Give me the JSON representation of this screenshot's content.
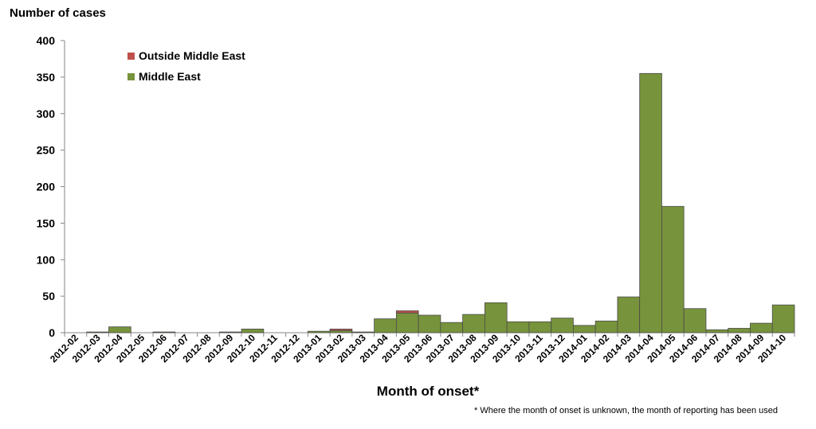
{
  "chart_data": {
    "type": "bar",
    "stacked": true,
    "ylabel": "Number of cases",
    "xlabel": "Month of onset*",
    "footnote": "* Where the month of onset is unknown, the month of reporting has been used",
    "ylim": [
      0,
      400
    ],
    "yticks": [
      0,
      50,
      100,
      150,
      200,
      250,
      300,
      350,
      400
    ],
    "grid": false,
    "legend_position": "top-left",
    "categories": [
      "2012-02",
      "2012-03",
      "2012-04",
      "2012-05",
      "2012-06",
      "2012-07",
      "2012-08",
      "2012-09",
      "2012-10",
      "2012-11",
      "2012-12",
      "2013-01",
      "2013-02",
      "2013-03",
      "2013-04",
      "2013-05",
      "2013-06",
      "2013-07",
      "2013-08",
      "2013-09",
      "2013-10",
      "2013-11",
      "2013-12",
      "2014-01",
      "2014-02",
      "2014-03",
      "2014-04",
      "2014-05",
      "2014-06",
      "2014-07",
      "2014-08",
      "2014-09",
      "2014-10"
    ],
    "series": [
      {
        "name": "Middle East",
        "color": "#77933C",
        "values": [
          0,
          1,
          8,
          0,
          1,
          0,
          0,
          1,
          5,
          0,
          0,
          2,
          3,
          1,
          19,
          27,
          24,
          14,
          25,
          41,
          15,
          15,
          20,
          10,
          16,
          49,
          355,
          173,
          33,
          4,
          6,
          13,
          38
        ]
      },
      {
        "name": "Outside Middle East",
        "color": "#C0504D",
        "values": [
          0,
          0,
          0,
          0,
          0,
          0,
          0,
          0,
          0,
          0,
          0,
          0,
          2,
          0,
          0,
          3,
          0,
          0,
          0,
          0,
          0,
          0,
          0,
          0,
          0,
          0,
          0,
          0,
          0,
          0,
          0,
          0,
          0
        ]
      }
    ],
    "legend": [
      {
        "name": "Outside Middle East",
        "color": "#C0504D"
      },
      {
        "name": "Middle East",
        "color": "#77933C"
      }
    ]
  }
}
